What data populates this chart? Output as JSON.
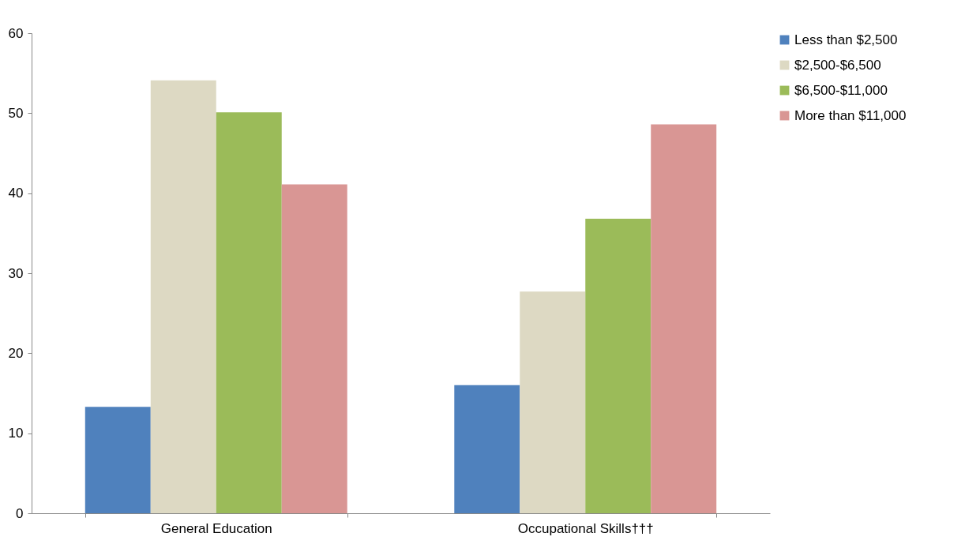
{
  "chart_data": {
    "type": "bar",
    "categories": [
      "General Education",
      "Occupational Skills†††"
    ],
    "series": [
      {
        "name": "Less than $2,500",
        "color": "#4f81bd",
        "values": [
          13.3,
          16.0
        ]
      },
      {
        "name": "$2,500-$6,500",
        "color": "#ddd9c3",
        "values": [
          54.1,
          27.7
        ]
      },
      {
        "name": "$6,500-$11,000",
        "color": "#9bbb59",
        "values": [
          50.1,
          36.8
        ]
      },
      {
        "name": "More than $11,000",
        "color": "#d99694",
        "values": [
          41.1,
          48.6
        ]
      }
    ],
    "ylim": [
      0,
      60
    ],
    "yticks": [
      0,
      10,
      20,
      30,
      40,
      50,
      60
    ],
    "grid": false,
    "legend": "right"
  }
}
